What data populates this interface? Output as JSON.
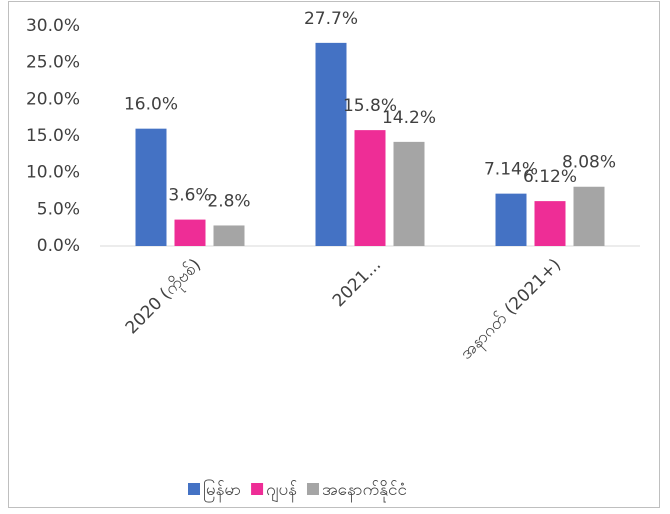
{
  "chart_data": {
    "type": "bar",
    "categories": [
      "2020 (ကိုဗစ်)",
      "2021...",
      "အနာဂတ် (2021+)"
    ],
    "series": [
      {
        "name": "မြန်မာ",
        "color": "#4472c4",
        "values": [
          16.0,
          27.7,
          7.14
        ],
        "value_labels": [
          "16.0%",
          "27.7%",
          "7.14%"
        ]
      },
      {
        "name": "ဂျပန်",
        "color": "#ee2d96",
        "values": [
          3.6,
          15.8,
          6.12
        ],
        "value_labels": [
          "3.6%",
          "15.8%",
          "6.12%"
        ]
      },
      {
        "name": "အနောက်နိုင်ငံ",
        "color": "#a5a5a5",
        "values": [
          2.8,
          14.2,
          8.08
        ],
        "value_labels": [
          "2.8%",
          "14.2%",
          "8.08%"
        ]
      }
    ],
    "ylim": [
      0,
      30
    ],
    "yticks": [
      {
        "value": 0,
        "label": "0.0%"
      },
      {
        "value": 5,
        "label": "5.0%"
      },
      {
        "value": 10,
        "label": "10.0%"
      },
      {
        "value": 15,
        "label": "15.0%"
      },
      {
        "value": 20,
        "label": "20.0%"
      },
      {
        "value": 25,
        "label": "25.0%"
      },
      {
        "value": 30,
        "label": "30.0%"
      }
    ],
    "grid": false,
    "legend": "bottom"
  }
}
